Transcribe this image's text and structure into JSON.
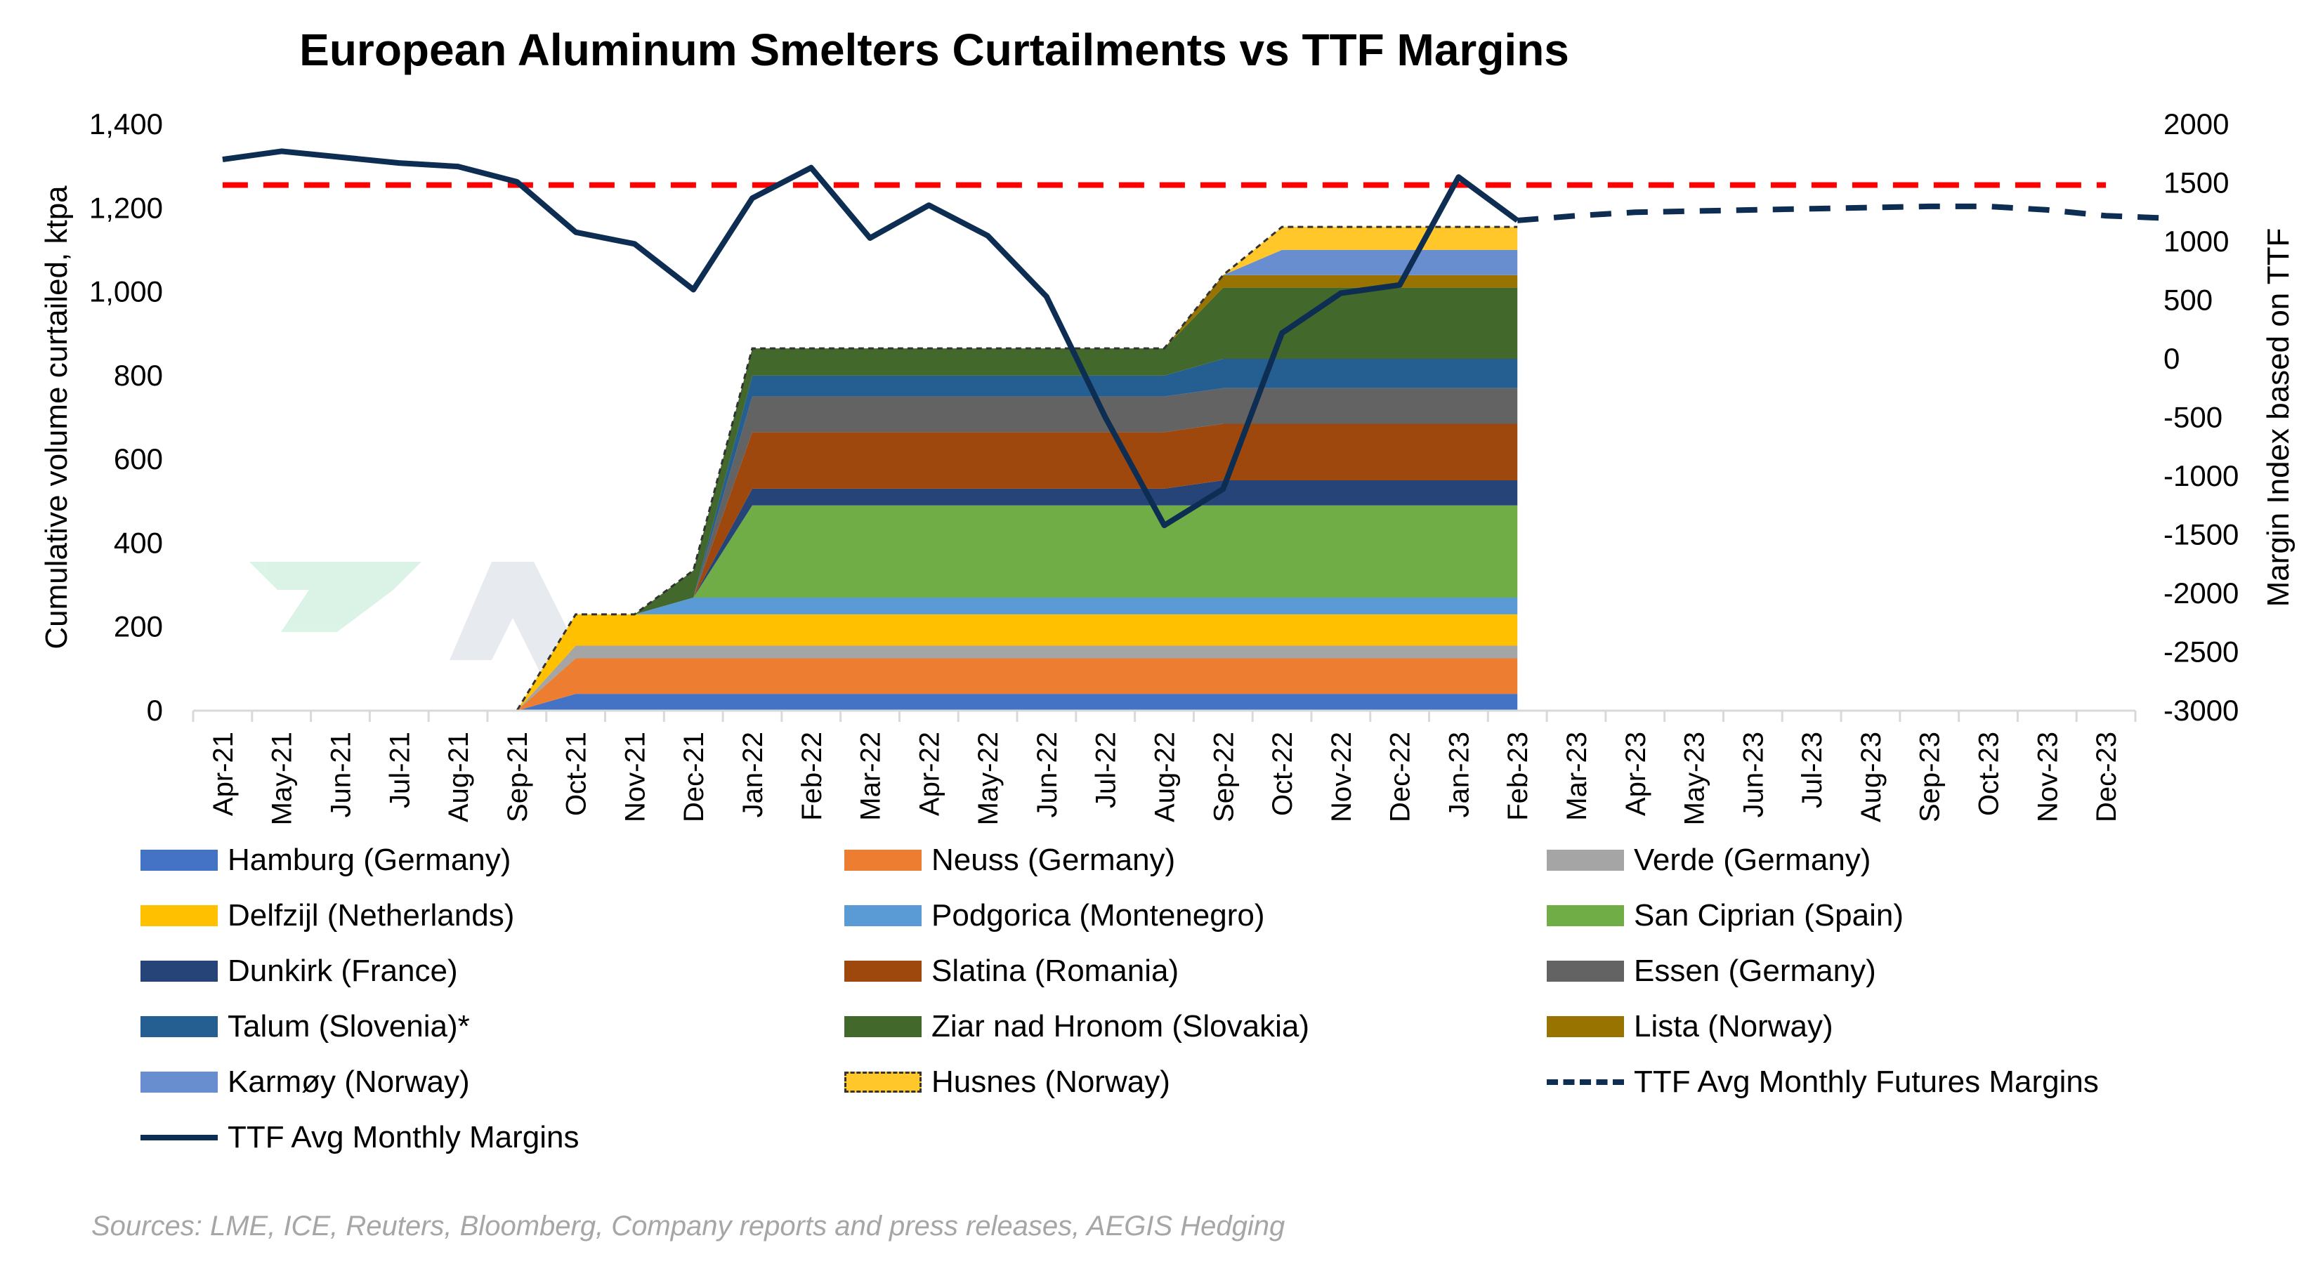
{
  "chart_data": {
    "type": "area",
    "title": "European Aluminum Smelters Curtailments vs TTF Margins",
    "ylabel": "Cumulative volume curtailed, ktpa",
    "y2label": "Margin Index based on TTF",
    "ylim": [
      0,
      1400
    ],
    "y2lim": [
      -3000,
      2000
    ],
    "yticks": [
      "0",
      "200",
      "400",
      "600",
      "800",
      "1,000",
      "1,200",
      "1,400"
    ],
    "yticks_values": [
      0,
      200,
      400,
      600,
      800,
      1000,
      1200,
      1400
    ],
    "y2ticks": [
      "-3000",
      "-2500",
      "-2000",
      "-1500",
      "-1000",
      "-500",
      "0",
      "500",
      "1000",
      "1500",
      "2000"
    ],
    "y2ticks_values": [
      -3000,
      -2500,
      -2000,
      -1500,
      -1000,
      -500,
      0,
      500,
      1000,
      1500,
      2000
    ],
    "categories": [
      "Apr-21",
      "May-21",
      "Jun-21",
      "Jul-21",
      "Aug-21",
      "Sep-21",
      "Oct-21",
      "Nov-21",
      "Dec-21",
      "Jan-22",
      "Feb-22",
      "Mar-22",
      "Apr-22",
      "May-22",
      "Jun-22",
      "Jul-22",
      "Aug-22",
      "Sep-22",
      "Oct-22",
      "Nov-22",
      "Dec-22",
      "Jan-23",
      "Feb-23",
      "Mar-23",
      "Apr-23",
      "May-23",
      "Jun-23",
      "Jul-23",
      "Aug-23",
      "Sep-23",
      "Oct-23",
      "Nov-23",
      "Dec-23"
    ],
    "stacked_series": [
      {
        "name": "Hamburg (Germany)",
        "color": "#4472c4",
        "values": [
          0,
          0,
          0,
          0,
          0,
          0,
          40,
          40,
          40,
          40,
          40,
          40,
          40,
          40,
          40,
          40,
          40,
          40,
          40,
          40,
          40,
          40,
          40
        ]
      },
      {
        "name": "Neuss (Germany)",
        "color": "#ed7d31",
        "values": [
          0,
          0,
          0,
          0,
          0,
          0,
          85,
          85,
          85,
          85,
          85,
          85,
          85,
          85,
          85,
          85,
          85,
          85,
          85,
          85,
          85,
          85,
          85
        ]
      },
      {
        "name": "Verde (Germany)",
        "color": "#a5a5a5",
        "values": [
          0,
          0,
          0,
          0,
          0,
          0,
          30,
          30,
          30,
          30,
          30,
          30,
          30,
          30,
          30,
          30,
          30,
          30,
          30,
          30,
          30,
          30,
          30
        ]
      },
      {
        "name": "Delfzijl (Netherlands)",
        "color": "#ffc000",
        "values": [
          0,
          0,
          0,
          0,
          0,
          0,
          75,
          75,
          75,
          75,
          75,
          75,
          75,
          75,
          75,
          75,
          75,
          75,
          75,
          75,
          75,
          75,
          75
        ]
      },
      {
        "name": "Podgorica (Montenegro)",
        "color": "#5b9bd5",
        "values": [
          0,
          0,
          0,
          0,
          0,
          0,
          0,
          0,
          40,
          40,
          40,
          40,
          40,
          40,
          40,
          40,
          40,
          40,
          40,
          40,
          40,
          40,
          40
        ]
      },
      {
        "name": "San Ciprian (Spain)",
        "color": "#70ad47",
        "values": [
          0,
          0,
          0,
          0,
          0,
          0,
          0,
          0,
          0,
          220,
          220,
          220,
          220,
          220,
          220,
          220,
          220,
          220,
          220,
          220,
          220,
          220,
          220
        ]
      },
      {
        "name": "Dunkirk (France)",
        "color": "#264478",
        "values": [
          0,
          0,
          0,
          0,
          0,
          0,
          0,
          0,
          0,
          40,
          40,
          40,
          40,
          40,
          40,
          40,
          40,
          60,
          60,
          60,
          60,
          60,
          60
        ]
      },
      {
        "name": "Slatina (Romania)",
        "color": "#9e480e",
        "values": [
          0,
          0,
          0,
          0,
          0,
          0,
          0,
          0,
          0,
          135,
          135,
          135,
          135,
          135,
          135,
          135,
          135,
          135,
          135,
          135,
          135,
          135,
          135
        ]
      },
      {
        "name": "Essen (Germany)",
        "color": "#636363",
        "values": [
          0,
          0,
          0,
          0,
          0,
          0,
          0,
          0,
          0,
          85,
          85,
          85,
          85,
          85,
          85,
          85,
          85,
          85,
          85,
          85,
          85,
          85,
          85
        ]
      },
      {
        "name": "Talum (Slovenia)*",
        "color": "#255e91",
        "values": [
          0,
          0,
          0,
          0,
          0,
          0,
          0,
          0,
          0,
          50,
          50,
          50,
          50,
          50,
          50,
          50,
          50,
          70,
          70,
          70,
          70,
          70,
          70
        ]
      },
      {
        "name": "Ziar nad Hronom (Slovakia)",
        "color": "#43682b",
        "values": [
          0,
          0,
          0,
          0,
          0,
          0,
          0,
          0,
          65,
          65,
          65,
          65,
          65,
          65,
          65,
          65,
          65,
          170,
          170,
          170,
          170,
          170,
          170
        ]
      },
      {
        "name": "Lista (Norway)",
        "color": "#997300",
        "values": [
          0,
          0,
          0,
          0,
          0,
          0,
          0,
          0,
          0,
          0,
          0,
          0,
          0,
          0,
          0,
          0,
          0,
          30,
          30,
          30,
          30,
          30,
          30
        ]
      },
      {
        "name": "Karmøy (Norway)",
        "color": "#698ed0",
        "values": [
          0,
          0,
          0,
          0,
          0,
          0,
          0,
          0,
          0,
          0,
          0,
          0,
          0,
          0,
          0,
          0,
          0,
          0,
          60,
          60,
          60,
          60,
          60
        ]
      },
      {
        "name": "Husnes (Norway)",
        "color": "#ffc729",
        "values": [
          0,
          0,
          0,
          0,
          0,
          0,
          0,
          0,
          0,
          0,
          0,
          0,
          0,
          0,
          0,
          0,
          0,
          0,
          55,
          55,
          55,
          55,
          55
        ]
      }
    ],
    "line_series": [
      {
        "name": "TTF Avg Monthly Margins",
        "color": "#0d2d52",
        "axis": "right",
        "values": [
          1700,
          1770,
          1720,
          1670,
          1640,
          1510,
          1080,
          980,
          590,
          1370,
          1630,
          1030,
          1310,
          1050,
          530,
          -500,
          -1420,
          -1110,
          220,
          560,
          630,
          1550,
          1180
        ]
      },
      {
        "name": "TTF Avg Monthly Futures Margins",
        "color": "#0d2d52",
        "axis": "right",
        "dashed": true,
        "start_index": 22,
        "values": [
          1180,
          1220,
          1250,
          1260,
          1270,
          1280,
          1290,
          1300,
          1300,
          1270,
          1220,
          1200
        ]
      }
    ],
    "reference_line": {
      "value": 1255,
      "axis": "left",
      "color": "#ff0000"
    }
  },
  "legend": [
    {
      "label": "Hamburg (Germany)",
      "color": "#4472c4",
      "kind": "area"
    },
    {
      "label": "Neuss (Germany)",
      "color": "#ed7d31",
      "kind": "area"
    },
    {
      "label": "Verde (Germany)",
      "color": "#a5a5a5",
      "kind": "area"
    },
    {
      "label": "Delfzijl (Netherlands)",
      "color": "#ffc000",
      "kind": "area"
    },
    {
      "label": "Podgorica (Montenegro)",
      "color": "#5b9bd5",
      "kind": "area"
    },
    {
      "label": "San Ciprian (Spain)",
      "color": "#70ad47",
      "kind": "area"
    },
    {
      "label": "Dunkirk (France)",
      "color": "#264478",
      "kind": "area"
    },
    {
      "label": "Slatina (Romania)",
      "color": "#9e480e",
      "kind": "area"
    },
    {
      "label": "Essen (Germany)",
      "color": "#636363",
      "kind": "area"
    },
    {
      "label": "Talum (Slovenia)*",
      "color": "#255e91",
      "kind": "area"
    },
    {
      "label": "Ziar nad Hronom (Slovakia)",
      "color": "#43682b",
      "kind": "area"
    },
    {
      "label": "Lista (Norway)",
      "color": "#997300",
      "kind": "area"
    },
    {
      "label": "Karmøy (Norway)",
      "color": "#698ed0",
      "kind": "area"
    },
    {
      "label": "Husnes (Norway)",
      "color": "#ffc729",
      "kind": "area-dashed"
    },
    {
      "label": "TTF Avg Monthly Futures Margins",
      "color": "#0d2d52",
      "kind": "dashed-line"
    },
    {
      "label": "TTF Avg Monthly Margins",
      "color": "#0d2d52",
      "kind": "line"
    }
  ],
  "sources": "Sources: LME, ICE, Reuters, Bloomberg, Company reports and press releases, AEGIS Hedging"
}
